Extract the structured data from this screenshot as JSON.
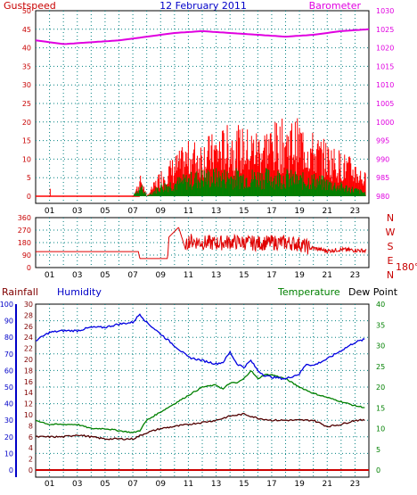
{
  "title": "12 February 2011",
  "panel1": {
    "left_label": "Gustspeed",
    "right_label": "Barometer",
    "left_ticks": [
      "0",
      "5",
      "10",
      "15",
      "20",
      "25",
      "30",
      "35",
      "40",
      "45",
      "50"
    ],
    "right_ticks": [
      "980",
      "985",
      "990",
      "995",
      "1000",
      "1005",
      "1010",
      "1015",
      "1020",
      "1025",
      "1030"
    ],
    "x_ticks": [
      "01",
      "03",
      "05",
      "07",
      "09",
      "11",
      "13",
      "15",
      "17",
      "19",
      "21",
      "23"
    ]
  },
  "panel2": {
    "left_ticks": [
      "0",
      "90",
      "180",
      "270",
      "360"
    ],
    "compass": [
      "N",
      "W",
      "S",
      "E",
      "N"
    ],
    "degree_label": "180°",
    "x_ticks": [
      "01",
      "03",
      "05",
      "07",
      "09",
      "11",
      "13",
      "15",
      "17",
      "19",
      "21",
      "23"
    ]
  },
  "panel3": {
    "rainfall_label": "Rainfall",
    "humidity_label": "Humidity",
    "temperature_label": "Temperature",
    "dewpoint_label": "Dew Point",
    "rain_ticks": [
      "0",
      "2",
      "4",
      "6",
      "8",
      "10",
      "12",
      "14",
      "16",
      "18",
      "20",
      "22",
      "24",
      "26",
      "28",
      "30"
    ],
    "humidity_ticks": [
      "0",
      "10",
      "20",
      "30",
      "40",
      "50",
      "60",
      "70",
      "80",
      "90",
      "100"
    ],
    "temp_ticks": [
      "0",
      "5",
      "10",
      "15",
      "20",
      "25",
      "30",
      "35",
      "40"
    ],
    "x_ticks": [
      "01",
      "03",
      "05",
      "07",
      "09",
      "11",
      "13",
      "15",
      "17",
      "19",
      "21",
      "23"
    ]
  },
  "colors": {
    "barometer": "#e000e0",
    "gust": "#ff0000",
    "wind": "#008000",
    "direction": "#ff0000",
    "humidity": "#0000e0",
    "temperature": "#008000",
    "dewpoint": "#500000",
    "rain": "#cc0000",
    "axis_red": "#c80000",
    "axis_blue": "#0000c8",
    "axis_green": "#008000",
    "grid": "#008080"
  },
  "chart_data": [
    {
      "type": "line",
      "x_unit": "hour",
      "xlim": [
        0,
        24
      ],
      "y_left": {
        "ylim": [
          0,
          50
        ]
      },
      "y_right": {
        "ylim": [
          980,
          1030
        ]
      },
      "series": [
        {
          "name": "Barometer",
          "axis": "right",
          "x": [
            0,
            2,
            4,
            6,
            8,
            10,
            12,
            14,
            16,
            18,
            20,
            22,
            24
          ],
          "values": [
            1022,
            1021,
            1021.5,
            1022,
            1023,
            1024,
            1024.5,
            1024,
            1023.5,
            1023,
            1023.5,
            1024.5,
            1025
          ]
        },
        {
          "name": "Gustspeed",
          "axis": "left",
          "x": [
            0,
            1,
            2,
            7,
            7.6,
            8,
            9,
            10,
            11,
            12,
            13,
            14,
            15,
            16,
            17,
            18,
            19,
            20,
            21,
            22,
            23,
            23.8
          ],
          "values": [
            0,
            0,
            0,
            0,
            5,
            0,
            6,
            9,
            12,
            13,
            14,
            16,
            15,
            15,
            16,
            17,
            17,
            14,
            12,
            10,
            8,
            5
          ]
        },
        {
          "name": "Windspeed",
          "axis": "left",
          "x": [
            0,
            7,
            7.6,
            8,
            9,
            10,
            11,
            12,
            13,
            14,
            15,
            16,
            17,
            18,
            19,
            20,
            21,
            22,
            23,
            23.8
          ],
          "values": [
            0,
            0,
            3,
            0,
            3,
            4,
            5,
            6,
            6,
            6,
            6,
            6,
            6,
            6,
            5,
            5,
            4,
            3,
            2,
            1
          ]
        }
      ]
    },
    {
      "type": "line",
      "name": "Wind Direction",
      "x_unit": "hour",
      "xlim": [
        0,
        24
      ],
      "ylim": [
        0,
        360
      ],
      "series": [
        {
          "name": "Direction",
          "x": [
            0,
            7.4,
            7.5,
            9.5,
            9.6,
            10.3,
            10.8,
            11,
            12,
            13,
            14,
            15,
            16,
            17,
            18,
            19,
            19.8,
            20,
            21,
            22,
            23,
            23.8
          ],
          "values": [
            115,
            115,
            65,
            65,
            220,
            290,
            130,
            195,
            180,
            175,
            185,
            180,
            175,
            180,
            180,
            170,
            140,
            140,
            120,
            130,
            125,
            120
          ]
        }
      ]
    },
    {
      "type": "line",
      "x_unit": "hour",
      "xlim": [
        0,
        24
      ],
      "y_rain": {
        "ylim": [
          0,
          30
        ]
      },
      "y_humidity": {
        "ylim": [
          0,
          100
        ]
      },
      "y_temp": {
        "ylim": [
          0,
          40
        ]
      },
      "series": [
        {
          "name": "Humidity",
          "axis": "humidity",
          "x": [
            0,
            1,
            2,
            3,
            4,
            5,
            6,
            7,
            7.5,
            8,
            9,
            10,
            11,
            12,
            13,
            13.5,
            14,
            14.5,
            15,
            15.5,
            16,
            16.5,
            17,
            18,
            19,
            19.5,
            20,
            21,
            22,
            23,
            23.8
          ],
          "values": [
            78,
            83,
            84,
            84,
            86,
            86,
            88,
            89,
            94,
            89,
            82,
            75,
            68,
            66,
            64,
            65,
            71,
            64,
            62,
            66,
            60,
            57,
            56,
            55,
            58,
            64,
            63,
            67,
            72,
            77,
            79
          ]
        },
        {
          "name": "Temperature",
          "axis": "temp",
          "x": [
            0,
            1,
            2,
            3,
            4,
            5,
            6,
            7,
            7.5,
            8,
            9,
            10,
            11,
            12,
            13,
            13.5,
            14,
            14.5,
            15,
            15.5,
            16,
            16.5,
            17,
            18,
            19,
            20,
            21,
            22,
            23,
            23.8
          ],
          "values": [
            12,
            11,
            11,
            11,
            10,
            10,
            9.5,
            9,
            9.5,
            12,
            14,
            16,
            18,
            20,
            20.5,
            19.5,
            21,
            21,
            22,
            24,
            22,
            23,
            23,
            22,
            20,
            18.5,
            17.5,
            16.5,
            15.5,
            15
          ]
        },
        {
          "name": "Dew Point",
          "axis": "temp",
          "x": [
            0,
            1,
            2,
            3,
            4,
            5,
            6,
            7,
            8,
            9,
            10,
            11,
            12,
            13,
            14,
            15,
            16,
            17,
            18,
            19,
            20,
            21,
            22,
            23,
            23.8
          ],
          "values": [
            8,
            8,
            8,
            8.5,
            8,
            7.5,
            7.5,
            7.5,
            9,
            10,
            10.5,
            11,
            11.5,
            12,
            13,
            13.5,
            12.5,
            12,
            12,
            12,
            12,
            10.5,
            11,
            12,
            12
          ]
        },
        {
          "name": "Rainfall",
          "axis": "rain",
          "x": [
            0,
            24
          ],
          "values": [
            0,
            0
          ]
        }
      ]
    }
  ]
}
